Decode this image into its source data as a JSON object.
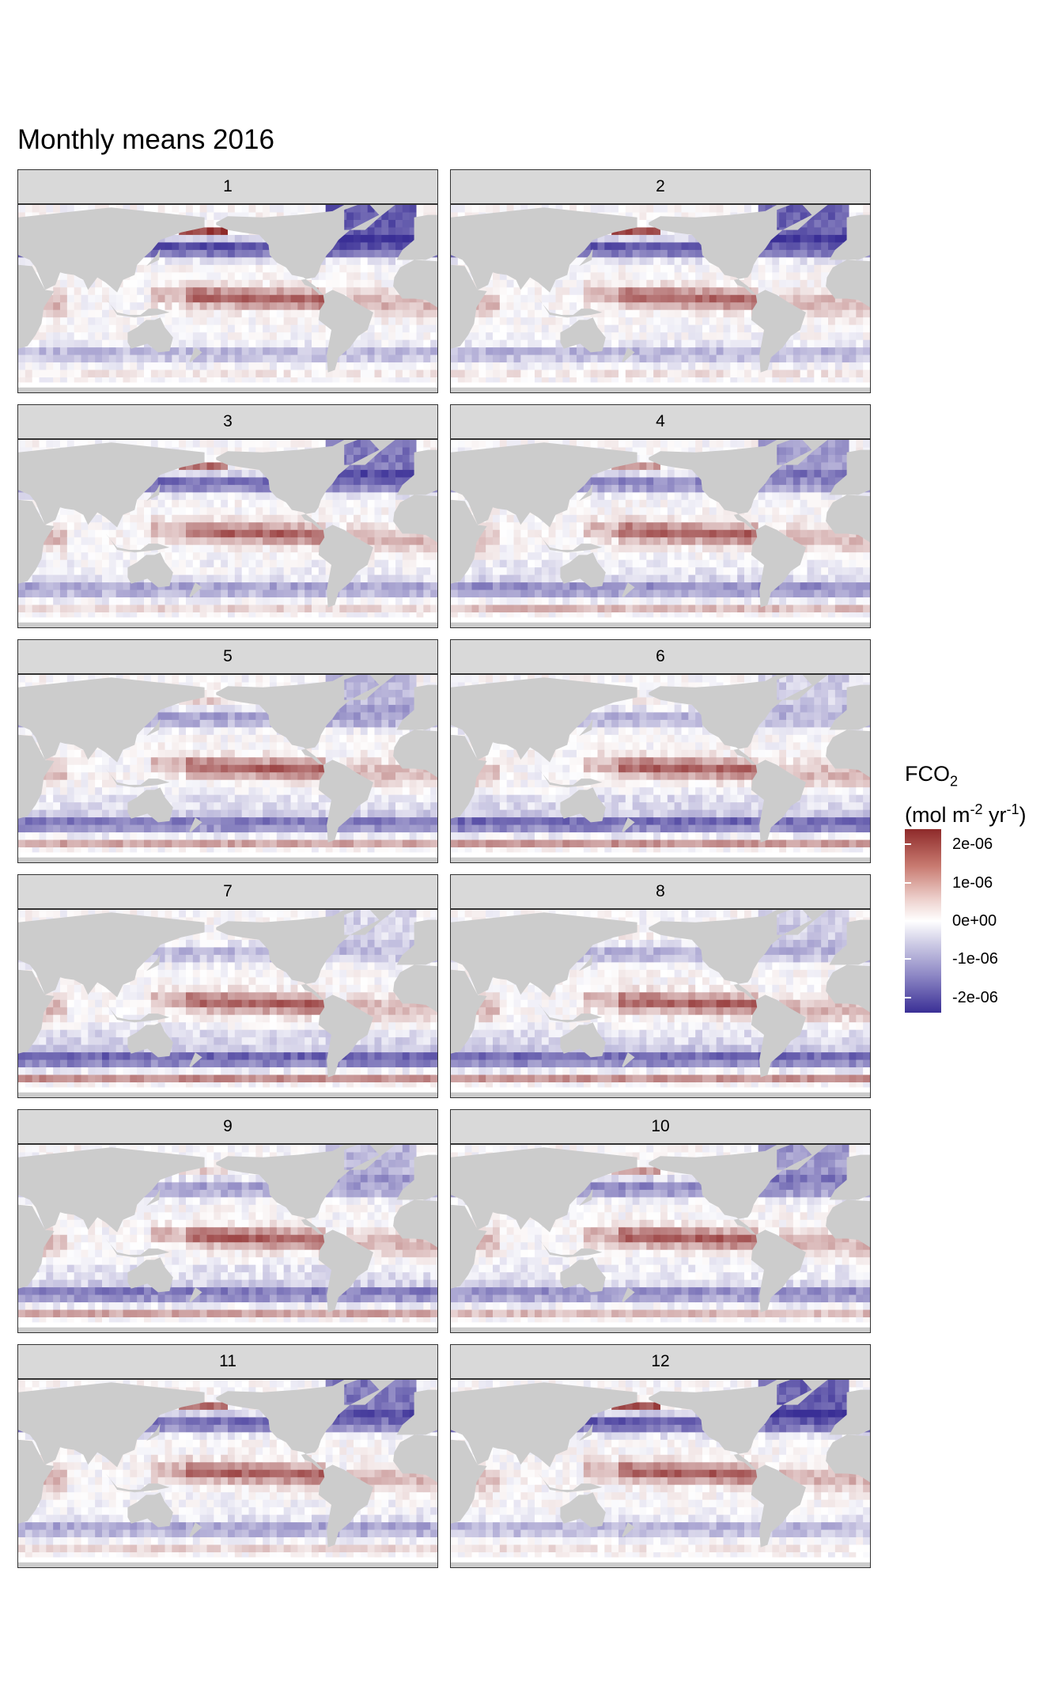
{
  "title": "Monthly means 2016",
  "colors": {
    "land": "#cccccc",
    "ocean_zero": "#ffffff",
    "positive": "#8e2a2a",
    "negative": "#3a2f96",
    "strip_bg": "#d9d9d9"
  },
  "panels": [
    {
      "label": "1",
      "month": 1
    },
    {
      "label": "2",
      "month": 2
    },
    {
      "label": "3",
      "month": 3
    },
    {
      "label": "4",
      "month": 4
    },
    {
      "label": "5",
      "month": 5
    },
    {
      "label": "6",
      "month": 6
    },
    {
      "label": "7",
      "month": 7
    },
    {
      "label": "8",
      "month": 8
    },
    {
      "label": "9",
      "month": 9
    },
    {
      "label": "10",
      "month": 10
    },
    {
      "label": "11",
      "month": 11
    },
    {
      "label": "12",
      "month": 12
    }
  ],
  "legend": {
    "title_main": "FCO",
    "title_sub": "2",
    "unit_open": "(mol m",
    "unit_exp1": "-2",
    "unit_mid": " yr",
    "unit_exp2": "-1",
    "unit_close": ")",
    "ticks": [
      "2e-06",
      "1e-06",
      "0e+00",
      "-1e-06",
      "-2e-06"
    ],
    "range": [
      -2.4e-06,
      2.4e-06
    ]
  }
}
